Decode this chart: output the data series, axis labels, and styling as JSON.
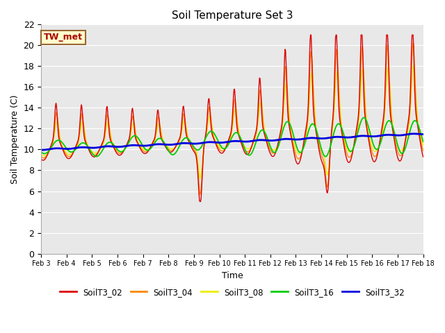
{
  "title": "Soil Temperature Set 3",
  "xlabel": "Time",
  "ylabel": "Soil Temperature (C)",
  "ylim": [
    0,
    22
  ],
  "annotation": "TW_met",
  "series_colors": {
    "SoilT3_02": "#dd0000",
    "SoilT3_04": "#ff8800",
    "SoilT3_08": "#eeee00",
    "SoilT3_16": "#00cc00",
    "SoilT3_32": "#0000dd"
  },
  "series_lw": {
    "SoilT3_02": 1.0,
    "SoilT3_04": 1.0,
    "SoilT3_08": 1.0,
    "SoilT3_16": 1.3,
    "SoilT3_32": 2.0
  },
  "legend_order": [
    "SoilT3_02",
    "SoilT3_04",
    "SoilT3_08",
    "SoilT3_16",
    "SoilT3_32"
  ],
  "xtick_labels": [
    "Feb 3",
    "Feb 4",
    "Feb 5",
    "Feb 6",
    "Feb 7",
    "Feb 8",
    "Feb 9",
    "Feb 10",
    "Feb 11",
    "Feb 12",
    "Feb 13",
    "Feb 14",
    "Feb 15",
    "Feb 16",
    "Feb 17",
    "Feb 18"
  ],
  "plot_facecolor": "#e8e8e8",
  "fig_facecolor": "#ffffff",
  "grid_color": "#ffffff",
  "title_fontsize": 11,
  "annotation_text_color": "#aa0000",
  "annotation_bg": "#ffffcc",
  "annotation_edge": "#996633"
}
